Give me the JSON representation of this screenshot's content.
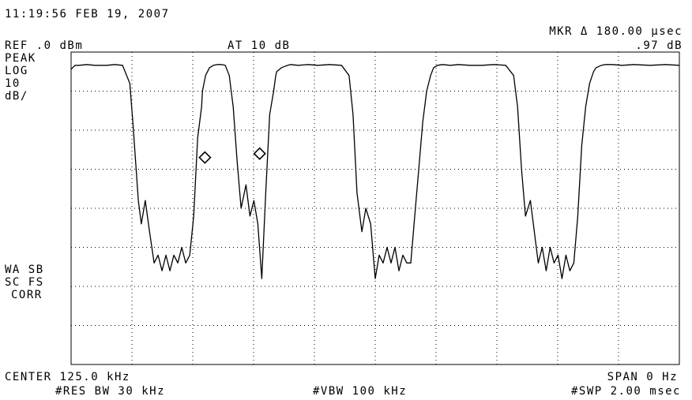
{
  "header": {
    "timestamp": "11:19:56 FEB 19, 2007",
    "ref_level": "REF .0 dBm",
    "attenuation": "AT 10 dB",
    "marker_label": "MKR Δ 180.00 µsec",
    "marker_value": ".97 dB"
  },
  "left_annotations": {
    "detector": "PEAK",
    "scale_type": "LOG",
    "scale_value": "10",
    "scale_unit": "dB/",
    "flags_1": "WA SB",
    "flags_2": "SC FS",
    "flags_3": "CORR"
  },
  "footer": {
    "center": "CENTER 125.0 kHz",
    "span": "SPAN 0 Hz",
    "rbw": "#RES BW 30 kHz",
    "vbw": "#VBW 100 kHz",
    "sweep": "#SWP 2.00 msec"
  },
  "chart_data": {
    "type": "line",
    "title": "",
    "xlabel": "",
    "ylabel": "",
    "x_unit": "msec",
    "y_unit": "dBm",
    "xlim": [
      0,
      2.0
    ],
    "ylim": [
      -80,
      0
    ],
    "x_divisions": 10,
    "y_divisions": 8,
    "grid": true,
    "trace_color": "#000000",
    "grid_color": "#000000",
    "series": [
      {
        "x": [
          0.0,
          0.013,
          0.026,
          0.052,
          0.078,
          0.117,
          0.143,
          0.169,
          0.193,
          0.203,
          0.221,
          0.231,
          0.244,
          0.258,
          0.273,
          0.286,
          0.299,
          0.312,
          0.325,
          0.338,
          0.351,
          0.364,
          0.377,
          0.39,
          0.403,
          0.416,
          0.429,
          0.432,
          0.442,
          0.455,
          0.468,
          0.481,
          0.494,
          0.507,
          0.52,
          0.533,
          0.546,
          0.559,
          0.575,
          0.588,
          0.601,
          0.614,
          0.627,
          0.64,
          0.653,
          0.666,
          0.673,
          0.676,
          0.692,
          0.705,
          0.721,
          0.747,
          0.78,
          0.811,
          0.85,
          0.889,
          0.914,
          0.927,
          0.94,
          0.956,
          0.969,
          0.985,
          1.0,
          1.013,
          1.026,
          1.039,
          1.052,
          1.065,
          1.078,
          1.091,
          1.104,
          1.117,
          1.13,
          1.143,
          1.156,
          1.169,
          1.182,
          1.192,
          1.205,
          1.221,
          1.247,
          1.273,
          1.312,
          1.351,
          1.39,
          1.429,
          1.455,
          1.468,
          1.481,
          1.494,
          1.51,
          1.523,
          1.536,
          1.549,
          1.562,
          1.575,
          1.588,
          1.601,
          1.614,
          1.627,
          1.64,
          1.653,
          1.666,
          1.679,
          1.692,
          1.705,
          1.718,
          1.726,
          1.744,
          1.757,
          1.78,
          1.812,
          1.851,
          1.903,
          1.955,
          2.0
        ],
        "y": [
          -4.4,
          -3.4,
          -3.4,
          -3.2,
          -3.4,
          -3.4,
          -3.2,
          -3.4,
          -8.0,
          -18.0,
          -38.0,
          -44.0,
          -38.0,
          -46.0,
          -54.0,
          -52.0,
          -56.0,
          -52.0,
          -56.0,
          -52.0,
          -54.0,
          -50.0,
          -54.0,
          -52.0,
          -42.0,
          -22.0,
          -14.0,
          -10.0,
          -6.0,
          -4.0,
          -3.4,
          -3.2,
          -3.2,
          -3.4,
          -6.0,
          -14.0,
          -28.0,
          -40.0,
          -34.0,
          -42.0,
          -38.0,
          -44.0,
          -58.0,
          -36.0,
          -16.0,
          -10.0,
          -6.0,
          -5.0,
          -4.0,
          -3.6,
          -3.2,
          -3.4,
          -3.2,
          -3.4,
          -3.2,
          -3.4,
          -6.0,
          -16.0,
          -36.0,
          -46.0,
          -40.0,
          -44.0,
          -58.0,
          -52.0,
          -54.0,
          -50.0,
          -54.0,
          -50.0,
          -56.0,
          -52.0,
          -54.0,
          -54.0,
          -42.0,
          -30.0,
          -18.0,
          -10.0,
          -6.0,
          -4.0,
          -3.4,
          -3.2,
          -3.4,
          -3.2,
          -3.4,
          -3.4,
          -3.2,
          -3.4,
          -6.0,
          -14.0,
          -30.0,
          -42.0,
          -38.0,
          -46.0,
          -54.0,
          -50.0,
          -56.0,
          -50.0,
          -54.0,
          -52.0,
          -58.0,
          -52.0,
          -56.0,
          -54.0,
          -42.0,
          -24.0,
          -14.0,
          -8.0,
          -5.0,
          -4.0,
          -3.4,
          -3.2,
          -3.2,
          -3.4,
          -3.2,
          -3.4,
          -3.2,
          -3.4
        ]
      }
    ],
    "markers": [
      {
        "x": 0.44,
        "y": -27.0,
        "shape": "diamond"
      },
      {
        "x": 0.62,
        "y": -26.0,
        "shape": "diamond"
      }
    ]
  }
}
